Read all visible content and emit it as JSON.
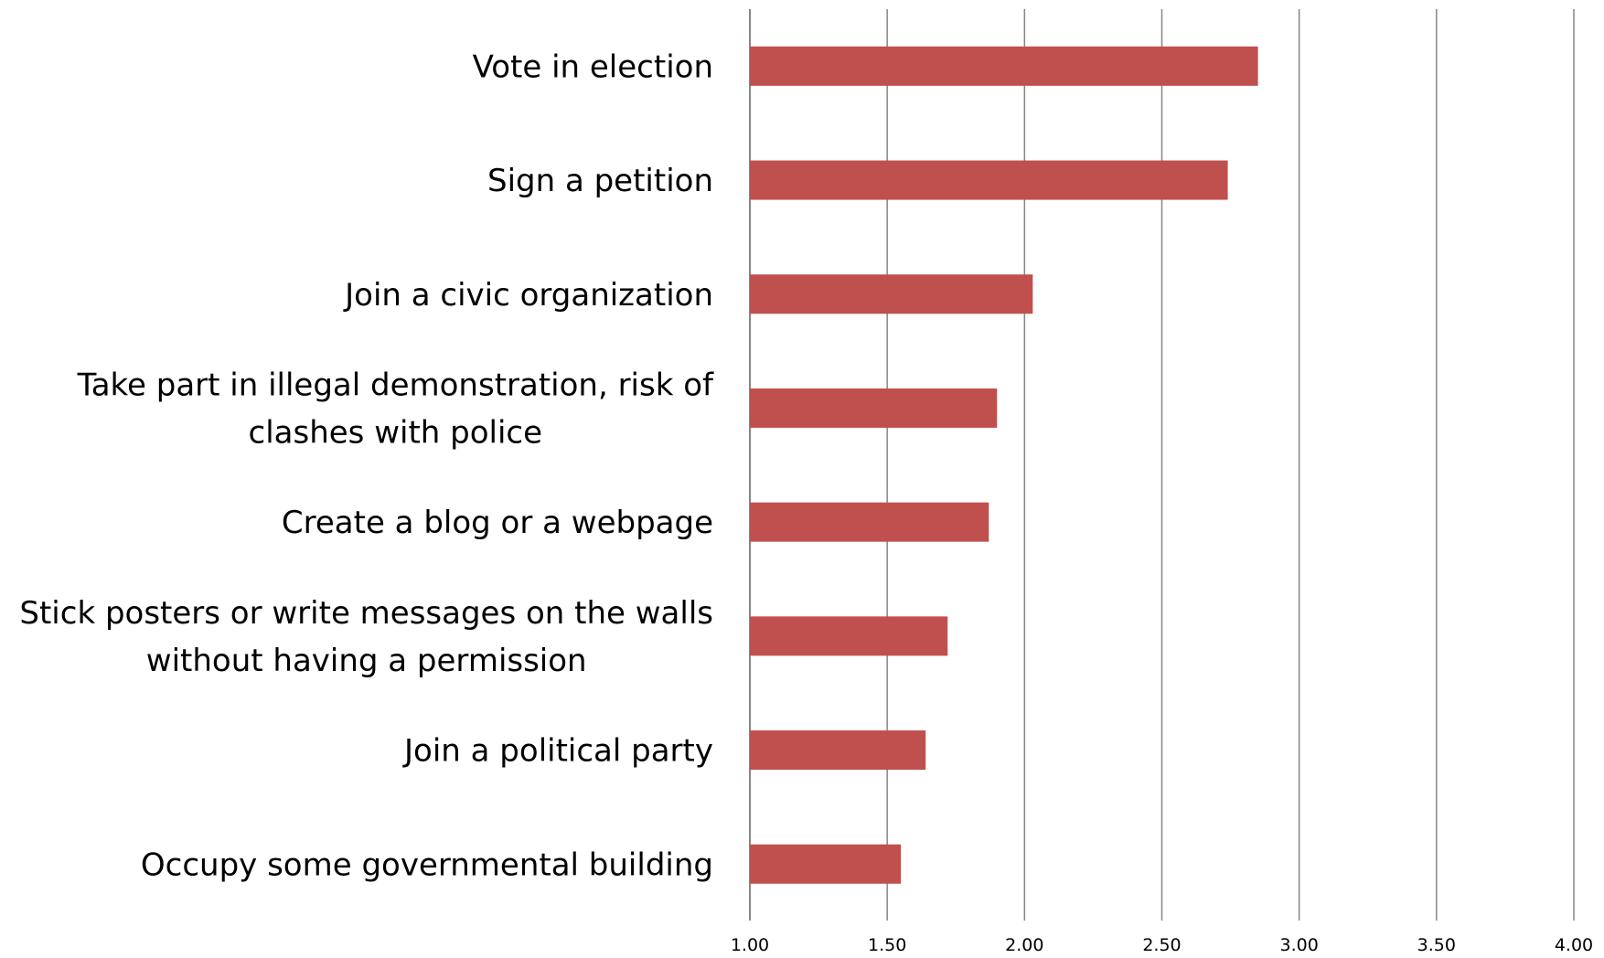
{
  "chart_data": {
    "type": "bar",
    "orientation": "horizontal",
    "categories": [
      [
        "Vote in election"
      ],
      [
        "Sign a petition"
      ],
      [
        "Join a civic organization"
      ],
      [
        "Take part in illegal demonstration, risk of",
        "clashes with police"
      ],
      [
        "Create a blog or a webpage"
      ],
      [
        "Stick posters or write messages on the walls",
        "without having a permission"
      ],
      [
        "Join a political party"
      ],
      [
        "Occupy some governmental building"
      ]
    ],
    "values": [
      2.85,
      2.74,
      2.03,
      1.9,
      1.87,
      1.72,
      1.64,
      1.55
    ],
    "xlim": [
      1.0,
      4.0
    ],
    "xticks": [
      "1.00",
      "1.50",
      "2.00",
      "2.50",
      "3.00",
      "3.50",
      "4.00"
    ],
    "xtick_values": [
      1.0,
      1.5,
      2.0,
      2.5,
      3.0,
      3.5,
      4.0
    ],
    "grid": "vertical",
    "legend": "none",
    "title": "",
    "xlabel": "",
    "ylabel": "",
    "colors": {
      "bar": "#c0504d",
      "grid": "#868686",
      "text": "#000000"
    }
  }
}
